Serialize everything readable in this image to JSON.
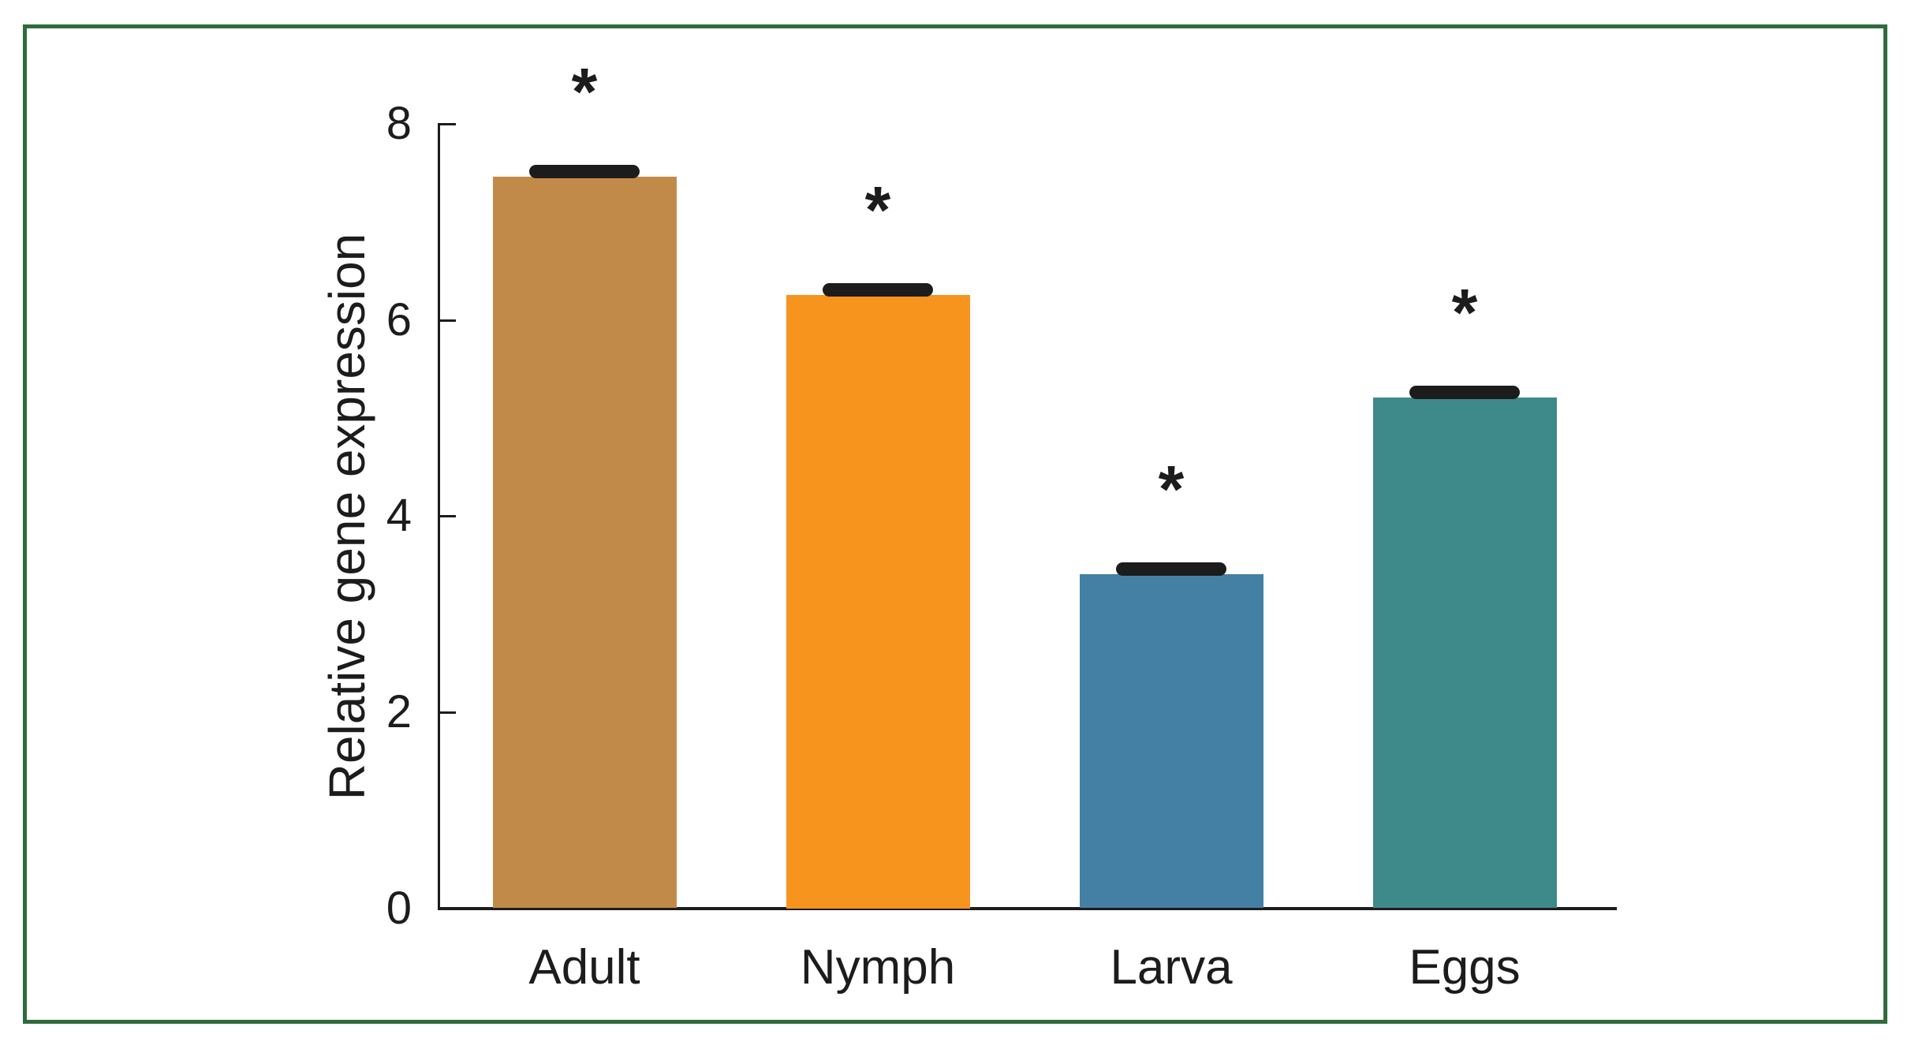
{
  "figure": {
    "border_color": "#2F6B3D",
    "background_color": "#FFFFFF",
    "axis_color": "#1C1C1C"
  },
  "chart_data": {
    "type": "bar",
    "title": "",
    "xlabel": "",
    "ylabel": "Relative gene expression",
    "categories": [
      "Adult",
      "Nymph",
      "Larva",
      "Eggs"
    ],
    "values": [
      7.45,
      6.25,
      3.4,
      5.2
    ],
    "errors": [
      0.06,
      0.06,
      0.06,
      0.06
    ],
    "significance_markers": [
      "*",
      "*",
      "*",
      "*"
    ],
    "bar_colors": [
      "#C28A49",
      "#F7941E",
      "#4480A4",
      "#3E8A8B"
    ],
    "error_bar_color": "#1C1C1C",
    "yticks": [
      0,
      2,
      4,
      6,
      8
    ],
    "ylim": [
      0,
      8
    ],
    "grid": false,
    "legend": null
  }
}
